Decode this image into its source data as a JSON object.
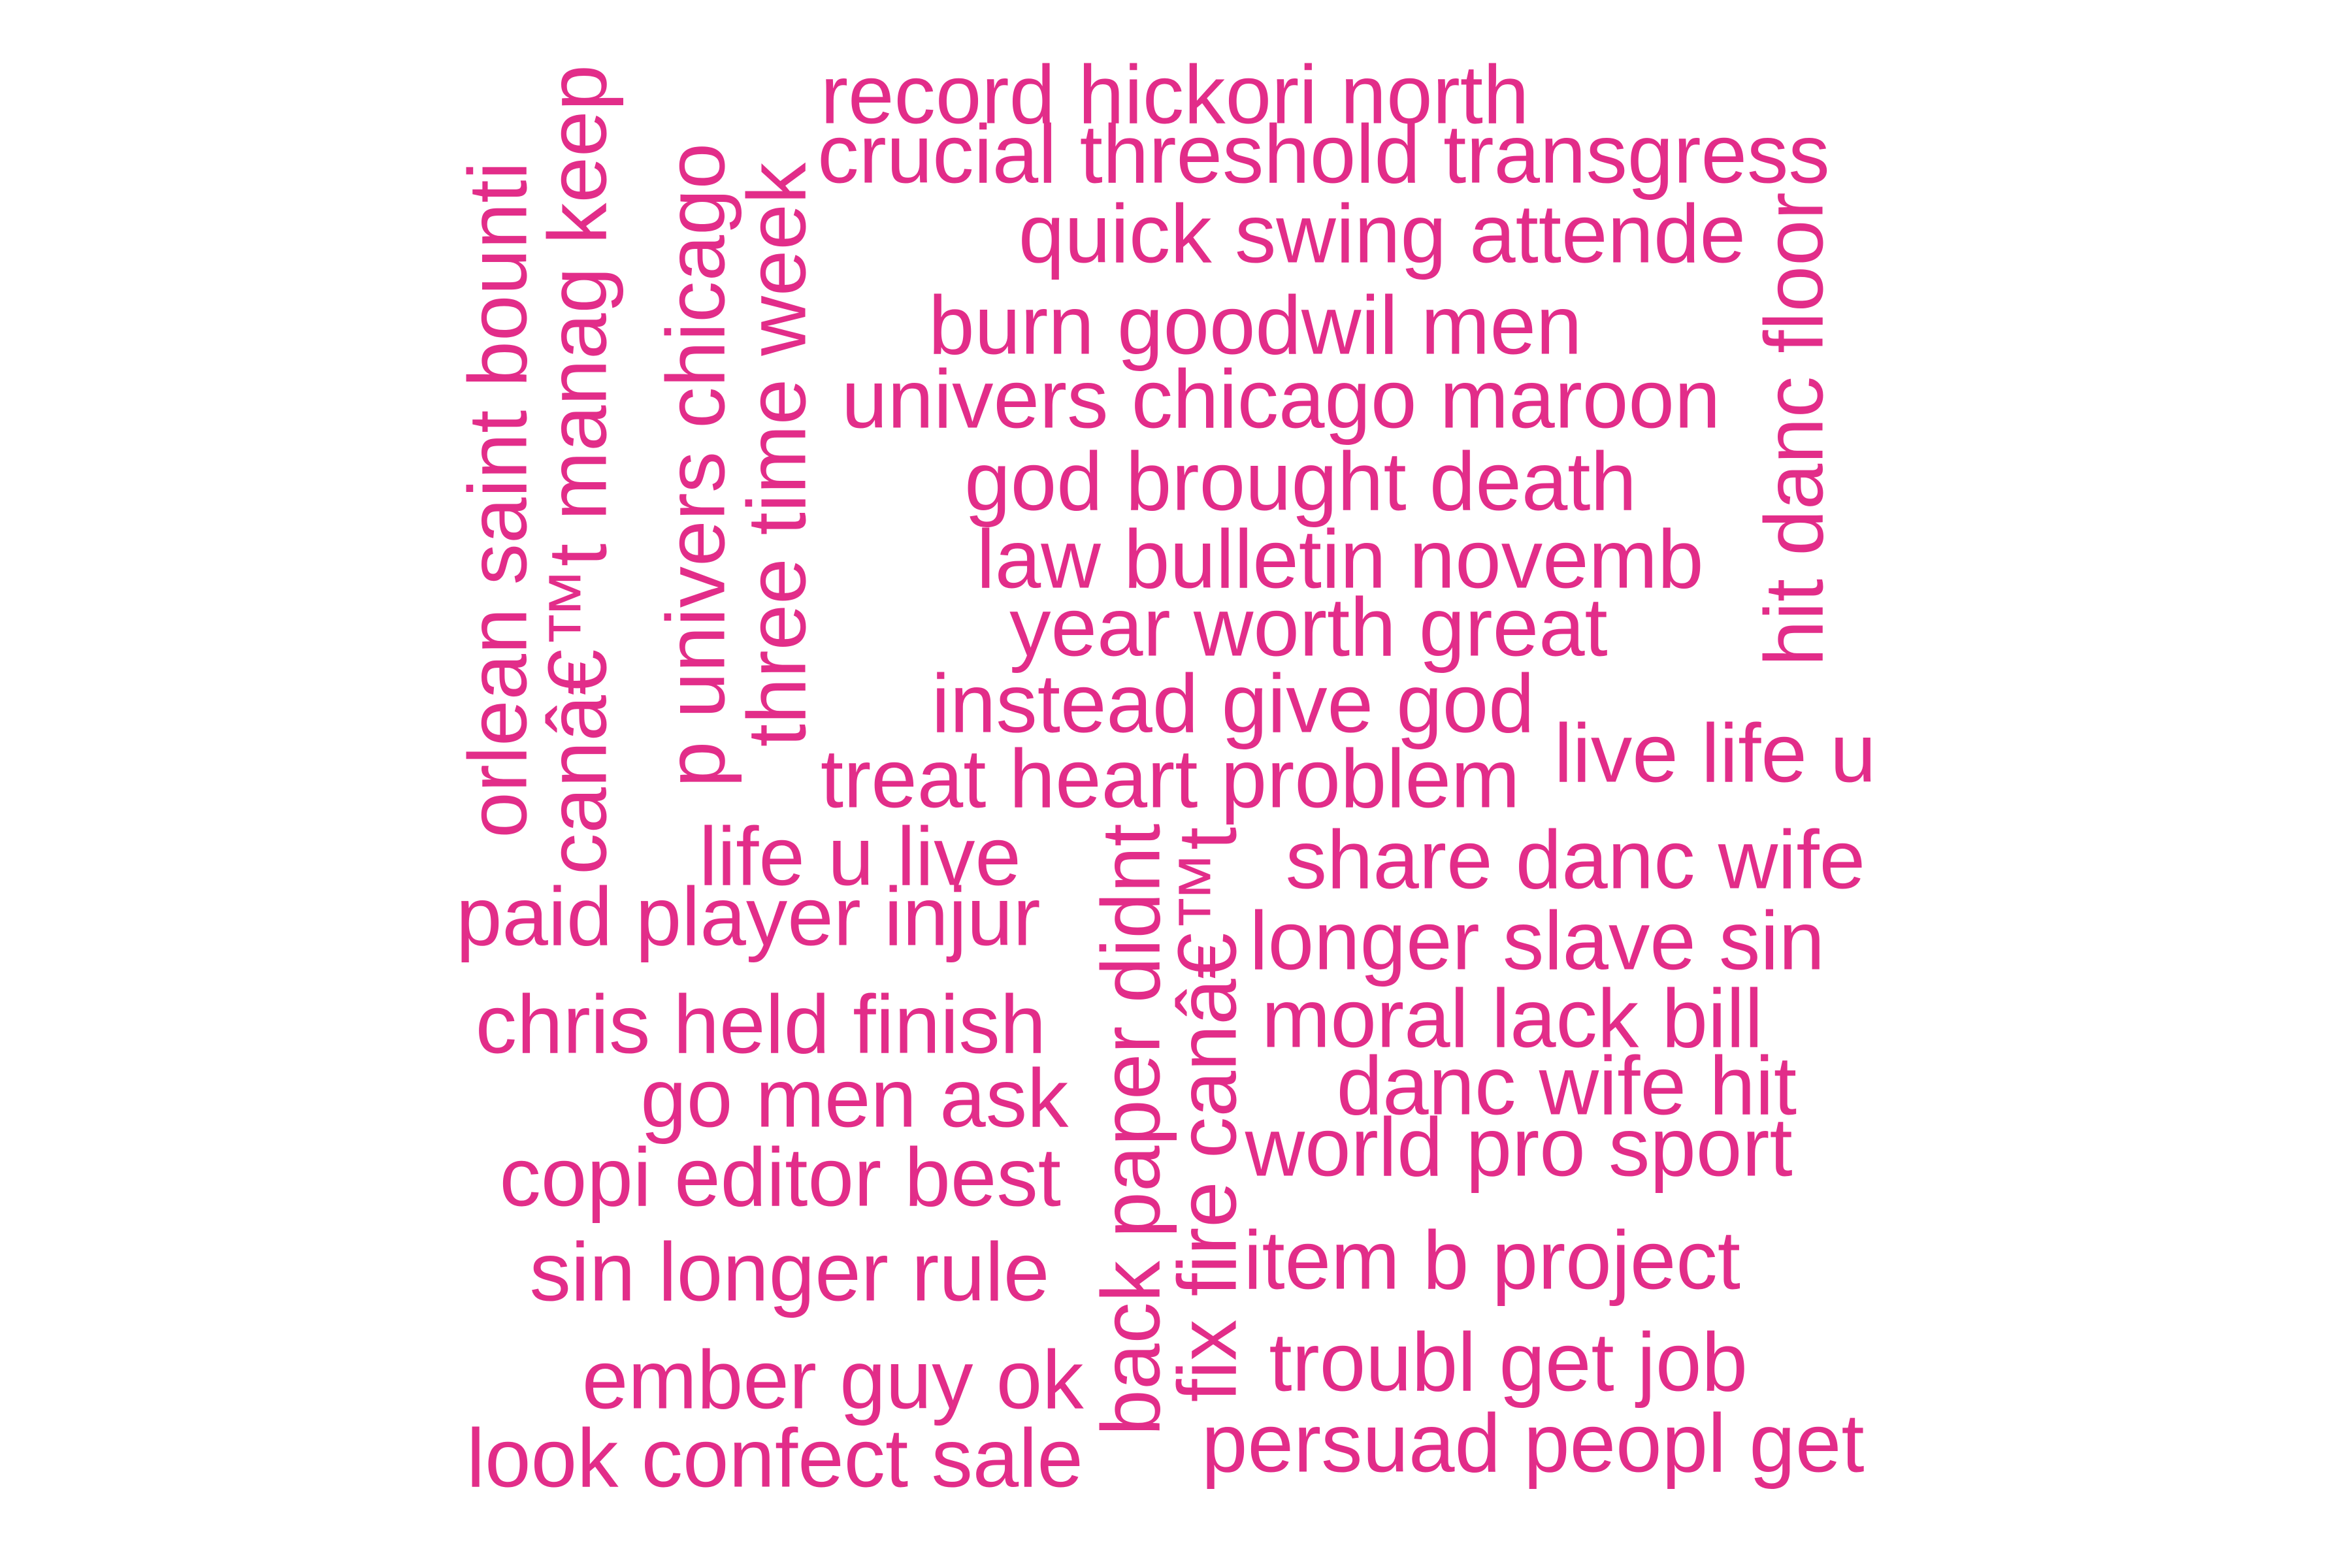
{
  "word_color": "#e22d89",
  "words": [
    "record hickori north",
    "crucial threshold transgress",
    "quick swing attende",
    "burn goodwil men",
    "univers chicago maroon",
    "god brought death",
    "law bulletin novemb",
    "year worth great",
    "instead give god",
    "treat heart problem",
    "live life u",
    "life u live",
    "share danc wife",
    "paid player injur",
    "longer slave sin",
    "chris held finish",
    "moral lack bill",
    "danc wife hit",
    "go men ask",
    "world pro sport",
    "copi editor best",
    "item b project",
    "sin longer rule",
    "troubl get job",
    "ember guy ok",
    "persuad peopl get",
    "look confect sale",
    "orlean saint bounti",
    "canâ€™t manag keep",
    "p univers chicago",
    "three time week",
    "hit danc floor",
    "back paper didnt",
    "fix fire canâ€™t"
  ]
}
